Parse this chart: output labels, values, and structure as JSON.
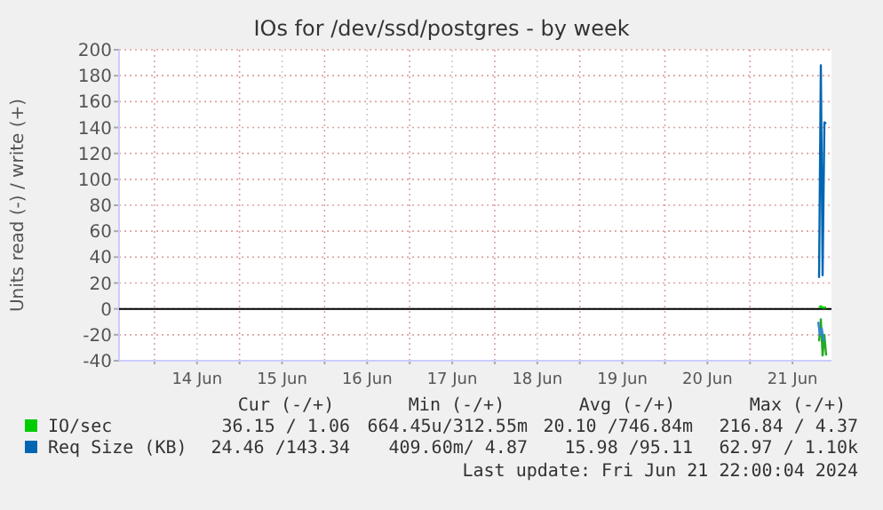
{
  "chart_data": {
    "type": "line",
    "title": "IOs for /dev/ssd/postgres - by week",
    "ylabel": "Units read (-) / write (+)",
    "x": [
      "2024-06-21T19:30",
      "2024-06-21T20:00",
      "2024-06-21T20:30",
      "2024-06-21T21:00",
      "2024-06-21T21:30"
    ],
    "series": [
      {
        "color": "#22aa22",
        "values": [
          -25,
          -8,
          -36,
          -20,
          -36
        ]
      },
      {
        "color": "#3388cc",
        "x": [
          "2024-06-21T19:15",
          "2024-06-21T19:45",
          "2024-06-21T20:15",
          "2024-06-21T20:45",
          "2024-06-21T21:15"
        ],
        "values": [
          -10,
          -20,
          -15,
          -24,
          -24
        ]
      },
      {
        "name": "IO/sec",
        "color": "#00cc00",
        "values": [
          1,
          2,
          1,
          1,
          1
        ]
      },
      {
        "name": "Req Size (KB)",
        "color": "#0066b3",
        "values": [
          24,
          188,
          26,
          144,
          143
        ]
      }
    ],
    "xlim": [
      "2024-06-13T14:00",
      "2024-06-21T23:00"
    ],
    "xticks": [
      {
        "value": "2024-06-14T00:00",
        "label": null
      },
      {
        "value": "2024-06-14T12:00",
        "label": "14 Jun"
      },
      {
        "value": "2024-06-15T00:00",
        "label": null
      },
      {
        "value": "2024-06-15T12:00",
        "label": "15 Jun"
      },
      {
        "value": "2024-06-16T00:00",
        "label": null
      },
      {
        "value": "2024-06-16T12:00",
        "label": "16 Jun"
      },
      {
        "value": "2024-06-17T00:00",
        "label": null
      },
      {
        "value": "2024-06-17T12:00",
        "label": "17 Jun"
      },
      {
        "value": "2024-06-18T00:00",
        "label": null
      },
      {
        "value": "2024-06-18T12:00",
        "label": "18 Jun"
      },
      {
        "value": "2024-06-19T00:00",
        "label": null
      },
      {
        "value": "2024-06-19T12:00",
        "label": "19 Jun"
      },
      {
        "value": "2024-06-20T00:00",
        "label": null
      },
      {
        "value": "2024-06-20T12:00",
        "label": "20 Jun"
      },
      {
        "value": "2024-06-21T00:00",
        "label": null
      },
      {
        "value": "2024-06-21T12:00",
        "label": "21 Jun"
      }
    ],
    "ylim": [
      -40,
      200
    ],
    "yticks": [
      -40,
      -20,
      0,
      20,
      40,
      60,
      80,
      100,
      120,
      140,
      160,
      180,
      200
    ],
    "grid": true,
    "legend": "bottom",
    "marker": "none",
    "line_style": "solid",
    "annotations": [
      "Cur (-/+)",
      "Min (-/+)",
      "Avg (-/+)",
      "Max (-/+)",
      "36.15 / 1.06",
      "664.45u/312.55m",
      "20.10 /746.84m",
      "216.84 / 4.37",
      "24.46 /143.34",
      "409.60m/ 4.87",
      "15.98 /95.11",
      "62.97 / 1.10k",
      "Last update: Fri Jun 21 22:00:04 2024"
    ]
  }
}
